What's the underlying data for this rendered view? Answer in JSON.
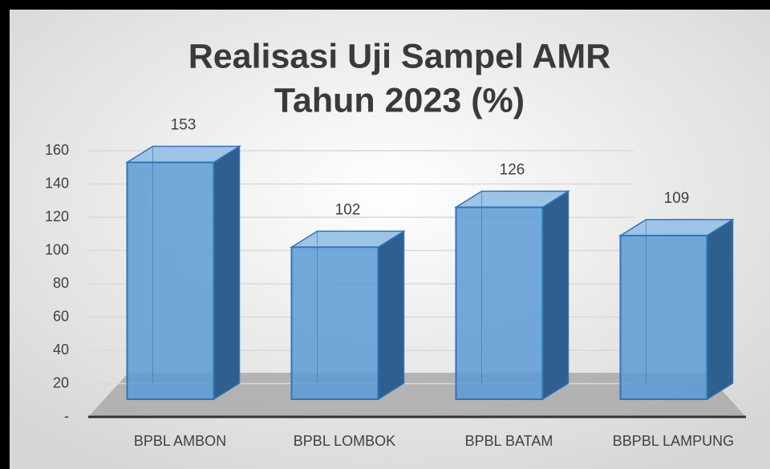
{
  "chart_data": {
    "type": "bar",
    "title": [
      "Realisasi Uji Sampel AMR",
      "Tahun 2023 (%)"
    ],
    "categories": [
      "BPBL AMBON",
      "BPBL LOMBOK",
      "BPBL BATAM",
      "BBPBL LAMPUNG"
    ],
    "values": [
      153,
      102,
      126,
      109
    ],
    "color": "#5b9bd5",
    "ylim": [
      0,
      160
    ],
    "yticks": [
      {
        "value": 0,
        "label": "-"
      },
      20,
      40,
      60,
      80,
      100,
      120,
      140,
      160
    ],
    "grid": true
  }
}
